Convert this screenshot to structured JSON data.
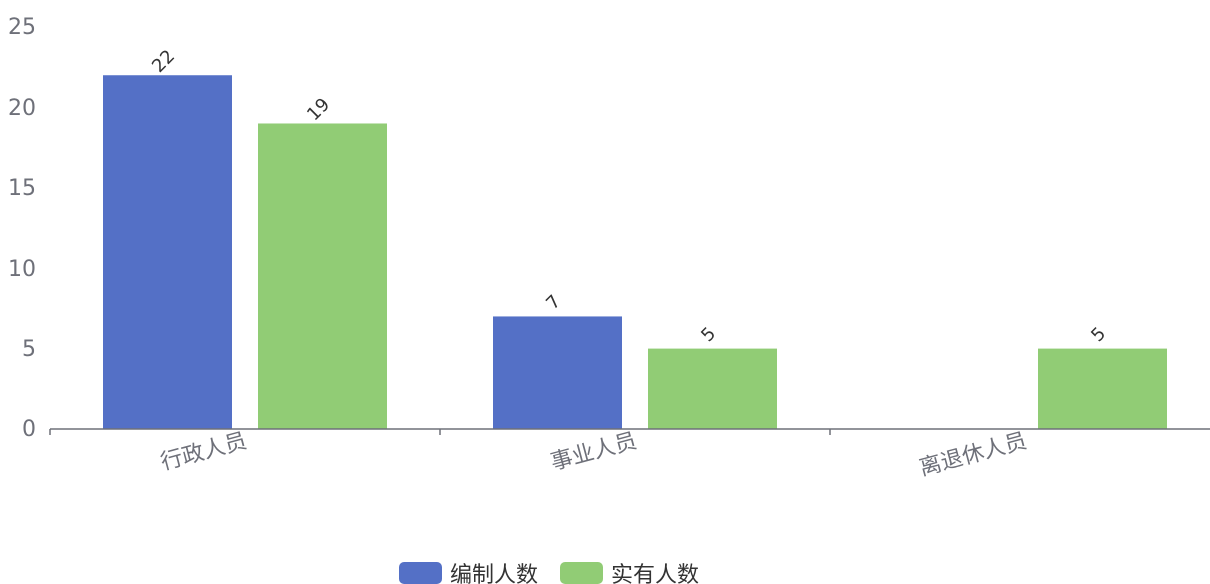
{
  "chart_data": {
    "type": "bar",
    "categories": [
      "行政人员",
      "事业人员",
      "离退休人员"
    ],
    "series": [
      {
        "name": "编制人数",
        "values": [
          22,
          7,
          null
        ],
        "color": "#5470c6"
      },
      {
        "name": "实有人数",
        "values": [
          19,
          5,
          5
        ],
        "color": "#91cc75"
      }
    ],
    "y_ticks": [
      "0",
      "5",
      "10",
      "15",
      "20",
      "25"
    ],
    "ylim": [
      0,
      25
    ],
    "grid": false,
    "legend_position": "bottom-center",
    "value_labels": {
      "s0": [
        "22",
        "7",
        ""
      ],
      "s1": [
        "19",
        "5",
        "5"
      ]
    }
  }
}
